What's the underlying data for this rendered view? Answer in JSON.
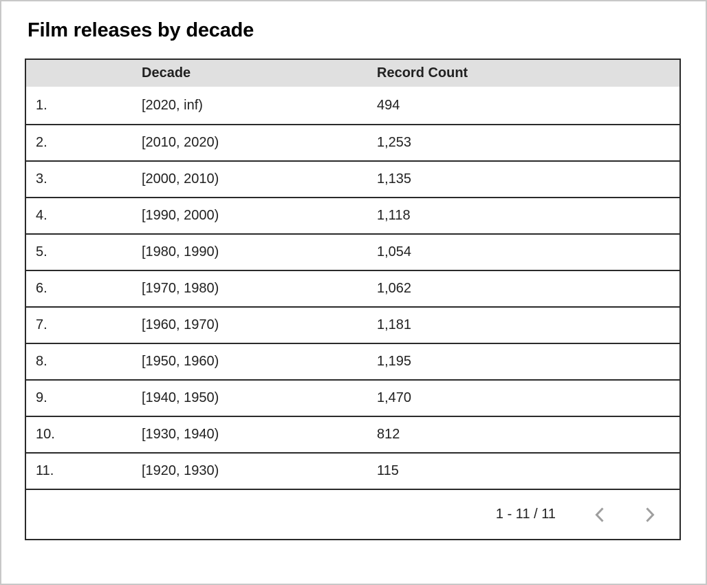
{
  "page": {
    "title": "Film releases by decade"
  },
  "table": {
    "columns": [
      "",
      "Decade",
      "Record Count"
    ],
    "rows": [
      {
        "index": "1.",
        "decade": "[2020, inf)",
        "count": "494"
      },
      {
        "index": "2.",
        "decade": "[2010, 2020)",
        "count": "1,253"
      },
      {
        "index": "3.",
        "decade": "[2000, 2010)",
        "count": "1,135"
      },
      {
        "index": "4.",
        "decade": "[1990, 2000)",
        "count": "1,118"
      },
      {
        "index": "5.",
        "decade": "[1980, 1990)",
        "count": "1,054"
      },
      {
        "index": "6.",
        "decade": "[1970, 1980)",
        "count": "1,062"
      },
      {
        "index": "7.",
        "decade": "[1960, 1970)",
        "count": "1,181"
      },
      {
        "index": "8.",
        "decade": "[1950, 1960)",
        "count": "1,195"
      },
      {
        "index": "9.",
        "decade": "[1940, 1950)",
        "count": "1,470"
      },
      {
        "index": "10.",
        "decade": "[1930, 1940)",
        "count": "812"
      },
      {
        "index": "11.",
        "decade": "[1920, 1930)",
        "count": "115"
      }
    ]
  },
  "pagination": {
    "range_label": "1 - 11 / 11",
    "prev_icon": "chevron-left",
    "next_icon": "chevron-right"
  },
  "colors": {
    "header_bg": "#e0e0e0",
    "table_border": "#2a2a2a",
    "text": "#212121",
    "chevron": "#9e9e9e",
    "frame_border": "#c8c8c8"
  },
  "chart_data": {
    "type": "table",
    "title": "Film releases by decade",
    "columns": [
      "Decade",
      "Record Count"
    ],
    "categories": [
      "[2020, inf)",
      "[2010, 2020)",
      "[2000, 2010)",
      "[1990, 2000)",
      "[1980, 1990)",
      "[1970, 1980)",
      "[1960, 1970)",
      "[1950, 1960)",
      "[1940, 1950)",
      "[1930, 1940)",
      "[1920, 1930)"
    ],
    "values": [
      494,
      1253,
      1135,
      1118,
      1054,
      1062,
      1181,
      1195,
      1470,
      812,
      115
    ],
    "pagination": "1 - 11 / 11",
    "legend_position": "none",
    "grid": "row-borders"
  }
}
